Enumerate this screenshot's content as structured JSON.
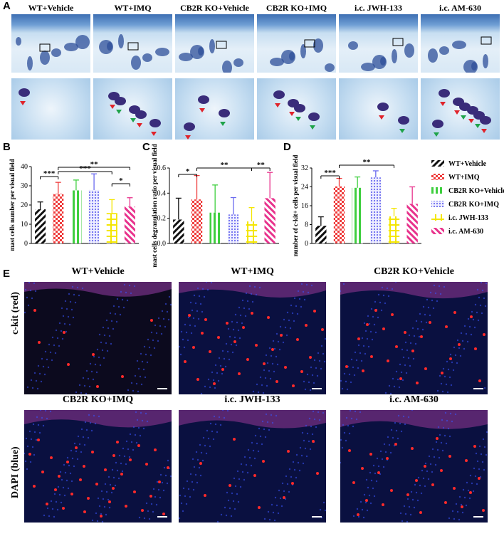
{
  "panel_letters": {
    "A": "A",
    "B": "B",
    "C": "C",
    "D": "D",
    "E": "E"
  },
  "groups": [
    "WT+Vehicle",
    "WT+IMQ",
    "CB2R KO+Vehicle",
    "CB2R KO+IMQ",
    "i.c. JWH-133",
    "i.c. AM-630"
  ],
  "legend": {
    "items": [
      {
        "label": "WT+Vehicle",
        "color": "#111111",
        "pattern": "diag-black"
      },
      {
        "label": "WT+IMQ",
        "color": "#ef3b3b",
        "pattern": "check-red"
      },
      {
        "label": "CB2R KO+Vehicle",
        "color": "#3fcf3f",
        "pattern": "vbar-green"
      },
      {
        "label": "CB2R KO+IMQ",
        "color": "#6a6aef",
        "pattern": "dots-blue"
      },
      {
        "label": "i.c. JWH-133",
        "color": "#f4e600",
        "pattern": "cross-yellow"
      },
      {
        "label": "i.c. AM-630",
        "color": "#e8328c",
        "pattern": "diag-pink"
      }
    ]
  },
  "chart_data": [
    {
      "type": "bar",
      "panel": "B",
      "categories": [
        "WT+Vehicle",
        "WT+IMQ",
        "CB2R KO+Vehicle",
        "CB2R KO+IMQ",
        "i.c. JWH-133",
        "i.c. AM-630"
      ],
      "values": [
        17.8,
        25.8,
        27.6,
        27.8,
        15.8,
        19.2
      ],
      "errors": [
        3.8,
        6.0,
        5.4,
        8.4,
        7.0,
        4.6
      ],
      "ylabel": "mast cells number per visual field",
      "ylim": [
        0,
        40
      ],
      "yticks": [
        "0",
        "10",
        "20",
        "30",
        "40"
      ],
      "significance": [
        {
          "from": 0,
          "to": 1,
          "label": "***"
        },
        {
          "from": 1,
          "to": 4,
          "label": "***"
        },
        {
          "from": 1,
          "to": 5,
          "label": "**"
        },
        {
          "from": 4,
          "to": 5,
          "label": "*"
        }
      ]
    },
    {
      "type": "bar",
      "panel": "C",
      "categories": [
        "WT+Vehicle",
        "WT+IMQ",
        "CB2R KO+Vehicle",
        "CB2R KO+IMQ",
        "i.c. JWH-133",
        "i.c. AM-630"
      ],
      "values": [
        0.19,
        0.35,
        0.245,
        0.23,
        0.175,
        0.36
      ],
      "errors": [
        0.17,
        0.19,
        0.22,
        0.135,
        0.11,
        0.205
      ],
      "ylabel": "mast cells degranulation ratio per visual field",
      "ylim": [
        0,
        0.6
      ],
      "yticks": [
        "0.0",
        "0.2",
        "0.4",
        "0.6"
      ],
      "significance": [
        {
          "from": 0,
          "to": 1,
          "label": "*"
        },
        {
          "from": 1,
          "to": 4,
          "label": "**"
        },
        {
          "from": 4,
          "to": 5,
          "label": "**"
        }
      ]
    },
    {
      "type": "bar",
      "panel": "D",
      "categories": [
        "WT+Vehicle",
        "WT+IMQ",
        "CB2R KO+Vehicle",
        "CB2R KO+IMQ",
        "i.c. JWH-133",
        "i.c. AM-630"
      ],
      "values": [
        7.5,
        24.2,
        23.6,
        28.0,
        11.5,
        16.8
      ],
      "errors": [
        3.8,
        3.4,
        4.6,
        2.8,
        3.4,
        7.2
      ],
      "ylabel": "number of c-kit+ cells per visual field",
      "ylim": [
        0,
        32
      ],
      "yticks": [
        "0",
        "8",
        "16",
        "24",
        "32"
      ],
      "significance": [
        {
          "from": 0,
          "to": 1,
          "label": "***"
        },
        {
          "from": 1,
          "to": 4,
          "label": "**"
        }
      ]
    }
  ],
  "fluorescence": {
    "titles": [
      "WT+Vehicle",
      "WT+IMQ",
      "CB2R KO+Vehicle",
      "CB2R KO+IMQ",
      "i.c. JWH-133",
      "i.c. AM-630"
    ],
    "side_labels": [
      "c-kit (red)",
      "DAPI (blue)"
    ]
  }
}
